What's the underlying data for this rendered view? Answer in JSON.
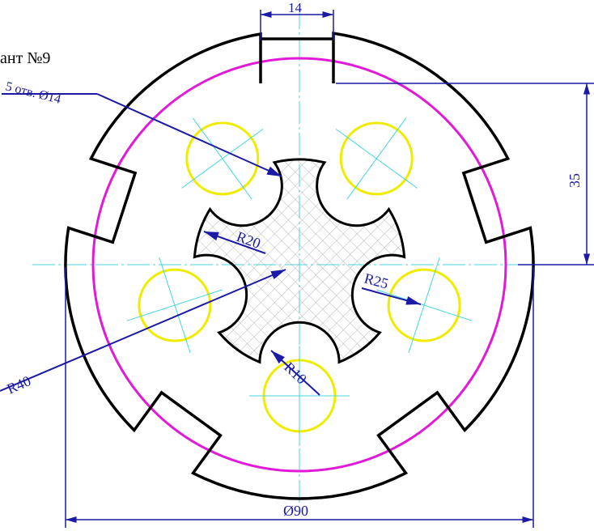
{
  "title_fragment": "ант №9",
  "labels": {
    "holes": "5 отв. Ø14",
    "width_slot": "14",
    "height": "35",
    "r_inner": "R20",
    "r_hole_center": "R25",
    "r_notch": "R10",
    "r_outer": "R40",
    "diameter": "Ø90"
  },
  "colors": {
    "outline": "#000000",
    "dimension": "#1a1aa6",
    "centerline": "#44d6dc",
    "holes": "#f0ec00",
    "pitch_circle": "#e01ad6",
    "hatch": "#9a9a9a"
  }
}
